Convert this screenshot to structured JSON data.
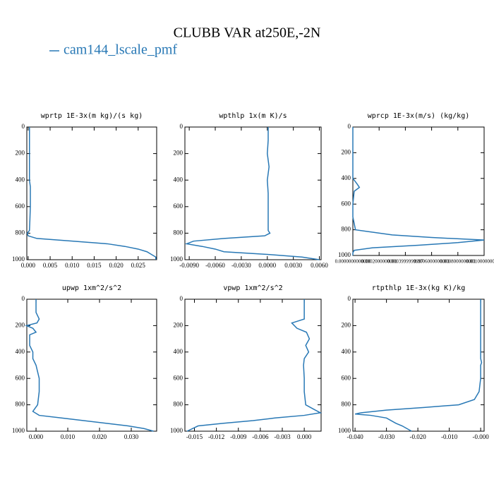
{
  "title": "CLUBB VAR at250E,-2N",
  "legend": {
    "name": "cam144_lscale_pmf",
    "color": "#2878b5"
  },
  "chart_data": [
    {
      "type": "line",
      "title": "wprtp  1E-3x(m kg)/(s kg)",
      "xlim": [
        -0.0003,
        0.0292
      ],
      "ylim": [
        0,
        1000
      ],
      "invert_y": true,
      "xticks": [
        {
          "value": 0,
          "label": "0.000"
        },
        {
          "value": 0.005,
          "label": "0.005"
        },
        {
          "value": 0.01,
          "label": "0.010"
        },
        {
          "value": 0.015,
          "label": "0.015"
        },
        {
          "value": 0.02,
          "label": "0.020"
        },
        {
          "value": 0.025,
          "label": "0.025"
        }
      ],
      "yticks": [
        0,
        200,
        400,
        600,
        800,
        1000
      ],
      "y": [
        0,
        100,
        200,
        300,
        400,
        450,
        500,
        600,
        700,
        780,
        800,
        820,
        840,
        860,
        880,
        900,
        920,
        940,
        960,
        980,
        1000
      ],
      "series": [
        {
          "color": "#2878b5",
          "values": [
            0.0003,
            0.0003,
            0.0003,
            0.0003,
            0.0003,
            0.0005,
            0.0005,
            0.0005,
            0.0004,
            0.0003,
            -0.0002,
            0.0,
            0.002,
            0.01,
            0.018,
            0.022,
            0.025,
            0.027,
            0.028,
            0.029,
            0.029
          ]
        }
      ]
    },
    {
      "type": "line",
      "title": "wpthlp  1x(m K)/s",
      "xlim": [
        -0.0095,
        0.0062
      ],
      "ylim": [
        0,
        1000
      ],
      "invert_y": true,
      "xticks": [
        {
          "value": -0.009,
          "label": "-0.0090"
        },
        {
          "value": -0.006,
          "label": "-0.0060"
        },
        {
          "value": -0.003,
          "label": "-0.0030"
        },
        {
          "value": 0,
          "label": "0.0000"
        },
        {
          "value": 0.003,
          "label": "0.0030"
        },
        {
          "value": 0.006,
          "label": "0.0060"
        }
      ],
      "yticks": [
        0,
        200,
        400,
        600,
        800,
        1000
      ],
      "y": [
        0,
        100,
        200,
        300,
        400,
        500,
        600,
        700,
        780,
        800,
        820,
        840,
        860,
        880,
        900,
        920,
        940,
        960,
        980,
        1000
      ],
      "series": [
        {
          "color": "#2878b5",
          "values": [
            0.0001,
            0.0001,
            0.0,
            0.0002,
            0.0,
            0.0001,
            0.0001,
            0.0001,
            0.0001,
            0.0003,
            -0.0003,
            -0.005,
            -0.0085,
            -0.0093,
            -0.0075,
            -0.006,
            -0.005,
            0.0,
            0.004,
            0.006
          ]
        }
      ]
    },
    {
      "type": "line",
      "title": "wprcp  1E-3x(m/s) (kg/kg)",
      "xlim": [
        0,
        0.001
      ],
      "ylim": [
        0,
        1000
      ],
      "invert_y": true,
      "xticks": [
        {
          "value": 0,
          "label": "0.0000000000000"
        },
        {
          "value": 0.0002,
          "label": "0.0002000000001"
        },
        {
          "value": 0.0004,
          "label": "0.0003999999997"
        },
        {
          "value": 0.0006,
          "label": "0.0006000000001"
        },
        {
          "value": 0.0008,
          "label": "0.0008000000001"
        },
        {
          "value": 0.001,
          "label": "0.0010000000001"
        }
      ],
      "yticks": [
        0,
        200,
        400,
        600,
        800,
        1000
      ],
      "y": [
        0,
        200,
        400,
        440,
        470,
        500,
        600,
        700,
        800,
        840,
        860,
        880,
        900,
        920,
        940,
        960,
        980,
        1000
      ],
      "series": [
        {
          "color": "#2878b5",
          "values": [
            0,
            0,
            0,
            3e-05,
            5e-05,
            1e-05,
            0,
            0,
            2e-05,
            0.0003,
            0.0006,
            0.001,
            0.0008,
            0.0005,
            0.00015,
            1e-05,
            0,
            0
          ]
        }
      ]
    },
    {
      "type": "line",
      "title": "upwp  1xm^2/s^2",
      "xlim": [
        -0.0029,
        0.038
      ],
      "ylim": [
        0,
        1000
      ],
      "invert_y": true,
      "xticks": [
        {
          "value": 0,
          "label": "0.000"
        },
        {
          "value": 0.01,
          "label": "0.010"
        },
        {
          "value": 0.02,
          "label": "0.020"
        },
        {
          "value": 0.03,
          "label": "0.030"
        }
      ],
      "yticks": [
        0,
        200,
        400,
        600,
        800,
        1000
      ],
      "y": [
        0,
        100,
        150,
        180,
        200,
        220,
        250,
        270,
        300,
        350,
        400,
        450,
        500,
        600,
        700,
        800,
        850,
        880,
        900,
        920,
        940,
        960,
        980,
        1000
      ],
      "series": [
        {
          "color": "#2878b5",
          "values": [
            0,
            0,
            0.001,
            0.0003,
            -0.003,
            -0.001,
            0,
            -0.002,
            -0.002,
            -0.002,
            -0.001,
            -0.001,
            0,
            0.001,
            0.001,
            0.0005,
            -0.001,
            0.001,
            0.008,
            0.015,
            0.022,
            0.029,
            0.034,
            0.037
          ]
        }
      ]
    },
    {
      "type": "line",
      "title": "vpwp  1xm^2/s^2",
      "xlim": [
        -0.0163,
        0.0023
      ],
      "ylim": [
        0,
        1000
      ],
      "invert_y": true,
      "xticks": [
        {
          "value": -0.015,
          "label": "-0.015"
        },
        {
          "value": -0.012,
          "label": "-0.012"
        },
        {
          "value": -0.009,
          "label": "-0.009"
        },
        {
          "value": -0.006,
          "label": "-0.006"
        },
        {
          "value": -0.003,
          "label": "-0.003"
        },
        {
          "value": 0,
          "label": "0.000"
        }
      ],
      "yticks": [
        0,
        200,
        400,
        600,
        800,
        1000
      ],
      "y": [
        0,
        150,
        180,
        220,
        250,
        300,
        350,
        400,
        450,
        500,
        600,
        700,
        800,
        840,
        860,
        880,
        900,
        920,
        940,
        960,
        1000
      ],
      "series": [
        {
          "color": "#2878b5",
          "values": [
            0,
            0,
            -0.0017,
            -0.001,
            0.0003,
            0.0007,
            0.0002,
            0.0006,
            0,
            -0.0001,
            0,
            0,
            0.0002,
            0.0015,
            0.0022,
            0,
            -0.004,
            -0.007,
            -0.011,
            -0.0145,
            -0.016
          ]
        }
      ]
    },
    {
      "type": "line",
      "title": "rtpthlp  1E-3x(kg K)/kg",
      "xlim": [
        -0.0407,
        0.0011
      ],
      "ylim": [
        0,
        1000
      ],
      "invert_y": true,
      "xticks": [
        {
          "value": -0.04,
          "label": "-0.040"
        },
        {
          "value": -0.03,
          "label": "-0.030"
        },
        {
          "value": -0.02,
          "label": "-0.020"
        },
        {
          "value": -0.01,
          "label": "-0.010"
        },
        {
          "value": 0,
          "label": "-0.000"
        }
      ],
      "yticks": [
        0,
        200,
        400,
        600,
        800,
        1000
      ],
      "y": [
        0,
        200,
        450,
        480,
        500,
        600,
        700,
        760,
        800,
        820,
        840,
        860,
        870,
        880,
        900,
        940,
        960,
        1000
      ],
      "series": [
        {
          "color": "#2878b5",
          "values": [
            0,
            0,
            0,
            0.0003,
            0,
            0,
            -0.0005,
            -0.002,
            -0.007,
            -0.018,
            -0.03,
            -0.038,
            -0.04,
            -0.035,
            -0.03,
            -0.027,
            -0.025,
            -0.022
          ]
        }
      ]
    }
  ]
}
